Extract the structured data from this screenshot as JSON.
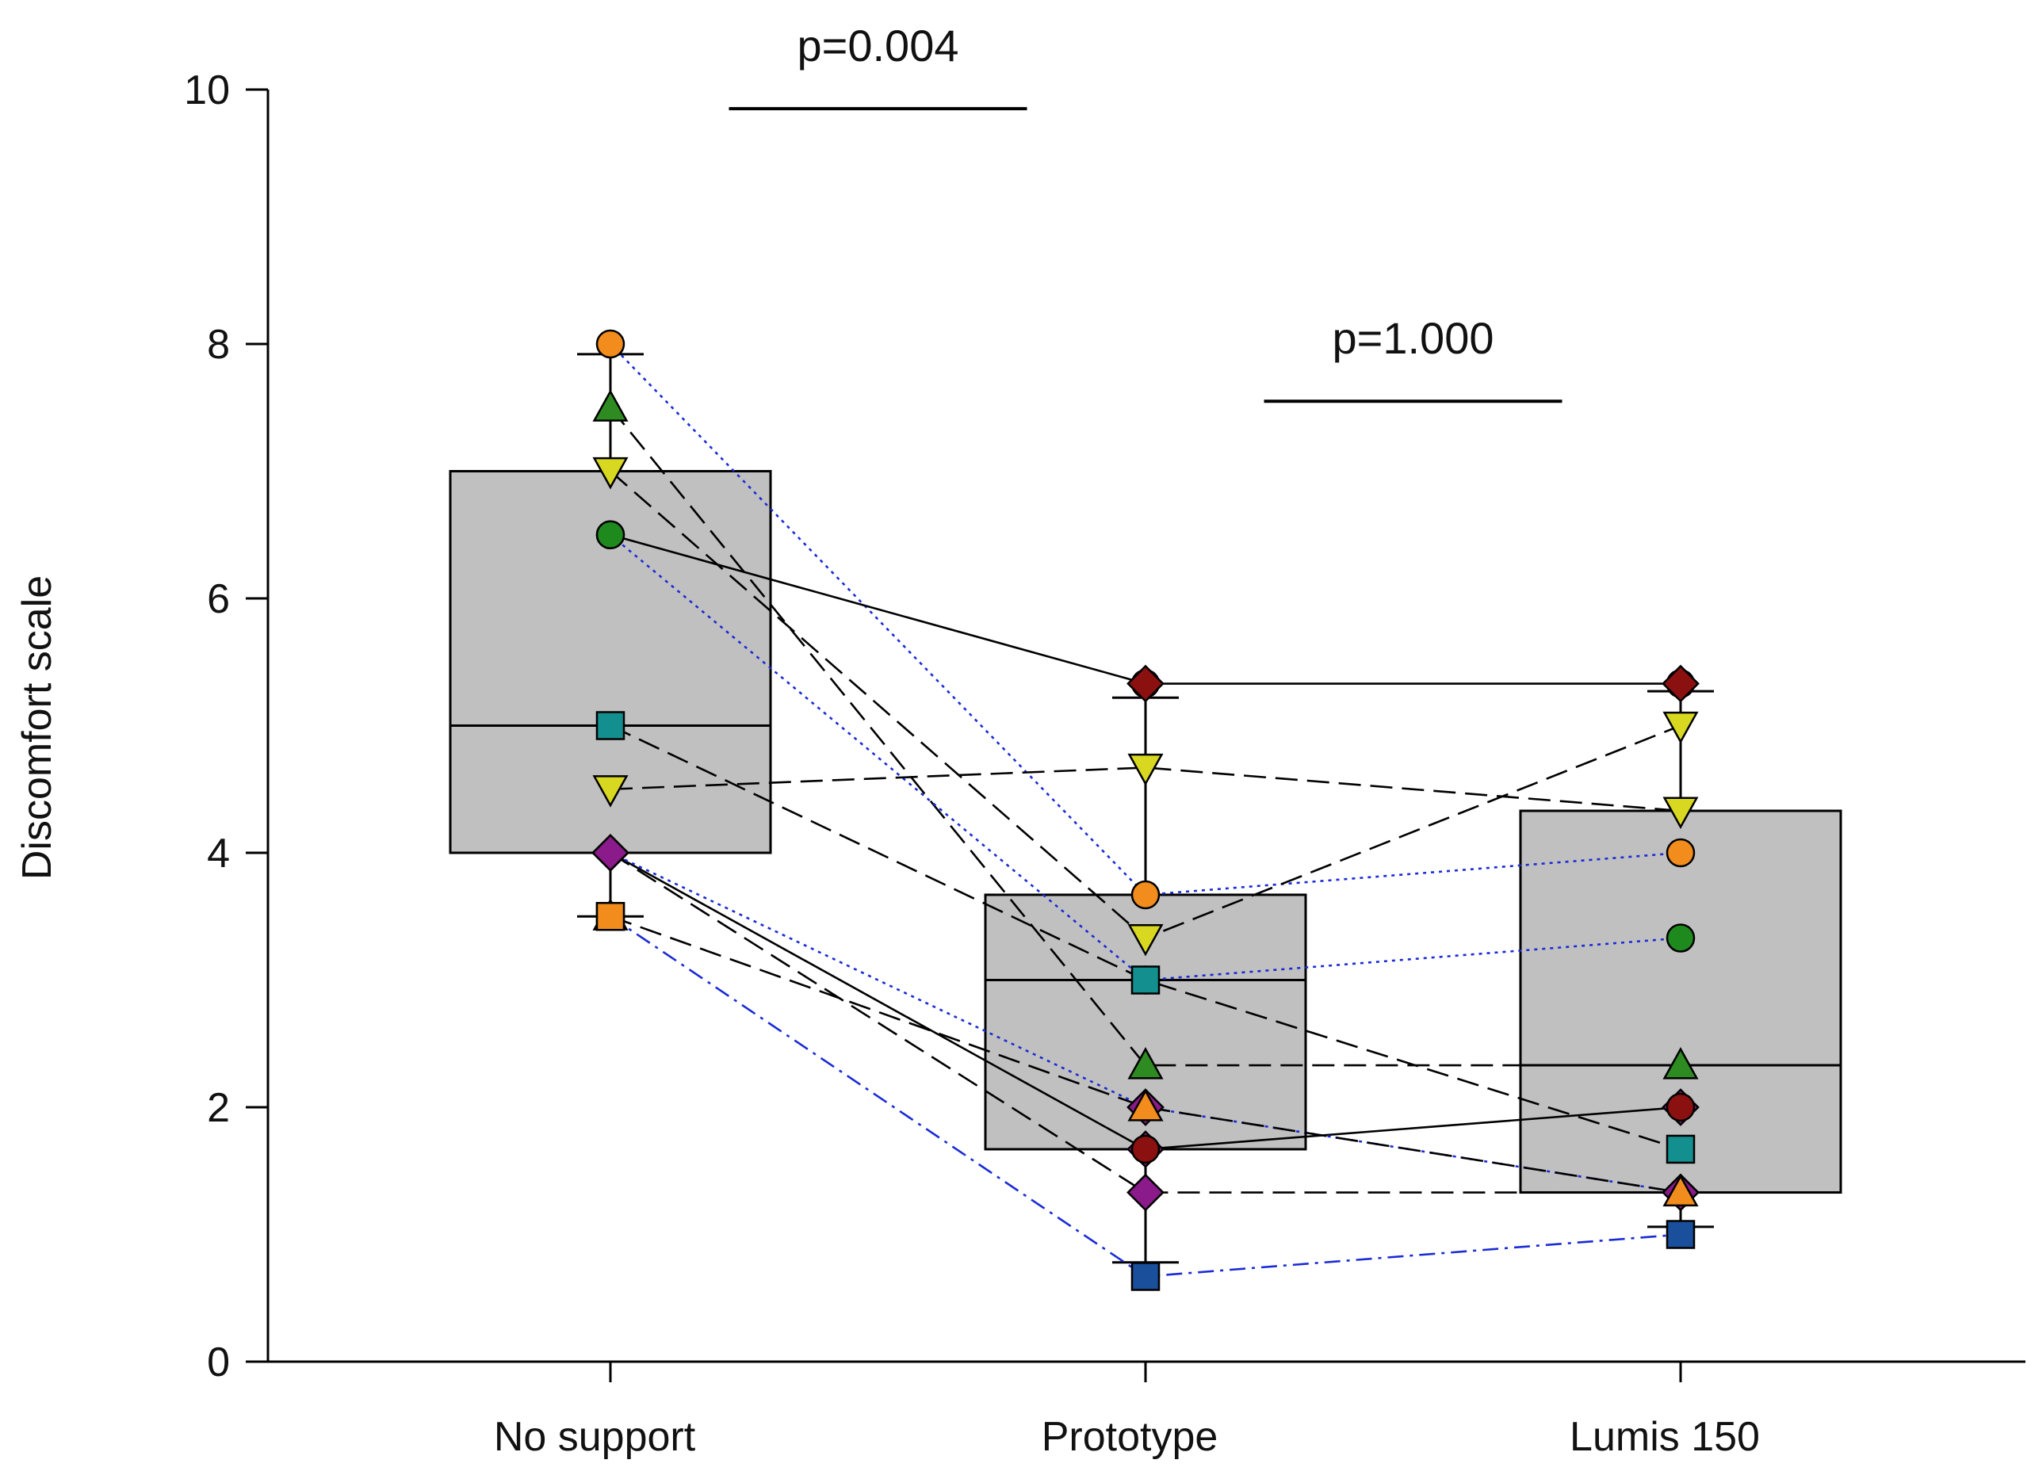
{
  "chart_data": {
    "type": "box",
    "title": "",
    "xlabel": "",
    "ylabel": "Discomfort scale",
    "ylim": [
      0,
      10
    ],
    "yticks": [
      0,
      2,
      4,
      6,
      8,
      10
    ],
    "categories": [
      "No support",
      "Prototype",
      "Lumis 150"
    ],
    "grid": false,
    "box_fill": "#c0c0c0",
    "boxes": [
      {
        "category": "No support",
        "q1": 4.0,
        "median": 5.0,
        "q3": 7.0,
        "whisker_low": 3.5,
        "whisker_high": 7.92
      },
      {
        "category": "Prototype",
        "q1": 1.67,
        "median": 3.0,
        "q3": 3.67,
        "whisker_low": 0.78,
        "whisker_high": 5.22
      },
      {
        "category": "Lumis 150",
        "q1": 1.33,
        "median": 2.33,
        "q3": 4.33,
        "whisker_low": 1.06,
        "whisker_high": 5.27
      }
    ],
    "comparisons": [
      {
        "label": "p=0.004",
        "from": "No support",
        "to": "Prototype",
        "y": 9.85
      },
      {
        "label": "p=1.000",
        "from": "Prototype",
        "to": "Lumis 150",
        "y": 7.55
      }
    ],
    "subjects": [
      {
        "marker": "circle",
        "color": "#f28c1c",
        "line": "dotted-blue",
        "values": [
          8.0,
          3.67,
          4.0
        ]
      },
      {
        "marker": "triangle-up",
        "color": "#2e8b22",
        "line": "dashed",
        "values": [
          7.5,
          2.33,
          2.33
        ]
      },
      {
        "marker": "triangle-down",
        "color": "#d8d820",
        "line": "dashed",
        "values": [
          7.0,
          3.33,
          5.0
        ]
      },
      {
        "marker": "circle",
        "color": "#1e8a1e",
        "line": "solid",
        "values": [
          6.5,
          5.33,
          5.33
        ]
      },
      {
        "marker": "circle",
        "color": "#1e8a1e",
        "line": "dotted-blue",
        "values": [
          6.5,
          3.0,
          3.33
        ]
      },
      {
        "marker": "square",
        "color": "#138f8f",
        "line": "dashed",
        "values": [
          5.0,
          3.0,
          1.67
        ]
      },
      {
        "marker": "triangle-down",
        "color": "#d8d820",
        "line": "dashed",
        "values": [
          4.5,
          4.67,
          4.33
        ]
      },
      {
        "marker": "diamond",
        "color": "#8b1a8b",
        "line": "solid",
        "values": [
          4.0,
          1.67,
          2.0
        ]
      },
      {
        "marker": "diamond",
        "color": "#8b1a8b",
        "line": "dotted-blue",
        "values": [
          4.0,
          2.0,
          1.33
        ]
      },
      {
        "marker": "diamond",
        "color": "#8b1a8b",
        "line": "dashed",
        "values": [
          4.0,
          1.33,
          1.33
        ]
      },
      {
        "marker": "triangle-up",
        "color": "#f28c1c",
        "line": "dashed",
        "values": [
          3.5,
          2.0,
          1.33
        ]
      },
      {
        "marker": "square",
        "color": "#1a4f9c",
        "line": "dashdot-blue",
        "values": [
          3.5,
          0.67,
          1.0
        ]
      }
    ],
    "overlay_markers": [
      {
        "category": "Prototype",
        "marker": "diamond",
        "color": "#8b1010",
        "value": 5.33
      },
      {
        "category": "Lumis 150",
        "marker": "diamond",
        "color": "#8b1010",
        "value": 5.33
      },
      {
        "category": "Prototype",
        "marker": "circle",
        "color": "#8b1010",
        "value": 1.67
      },
      {
        "category": "Lumis 150",
        "marker": "circle",
        "color": "#8b1010",
        "value": 2.0
      },
      {
        "category": "No support",
        "marker": "square",
        "color": "#f28c1c",
        "value": 3.5
      }
    ]
  }
}
